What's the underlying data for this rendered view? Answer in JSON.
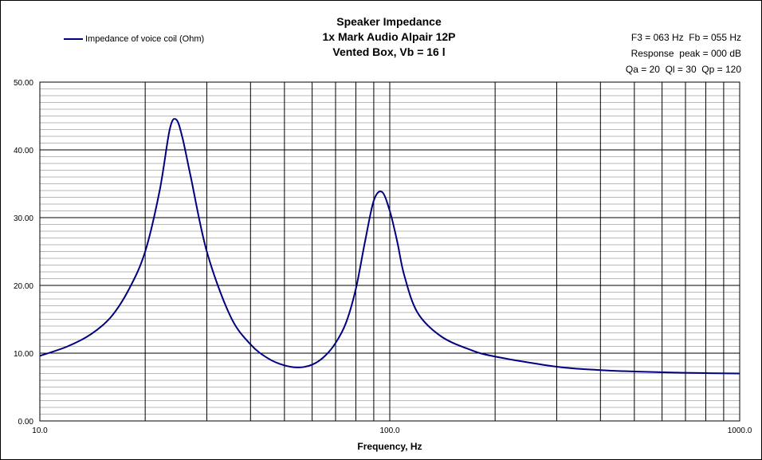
{
  "chart_data": {
    "type": "line",
    "title_lines": [
      "Speaker Impedance",
      "1x Mark Audio Alpair 12P",
      "Vented Box, Vb = 16 l"
    ],
    "info_lines": [
      "F3 = 063 Hz  Fb = 055 Hz",
      "Response  peak = 000 dB",
      "Qa = 20  Ql = 30  Qp = 120"
    ],
    "xlabel": "Frequency, Hz",
    "ylabel": "",
    "x_scale": "log",
    "xlim": [
      10,
      1000
    ],
    "ylim": [
      0,
      50
    ],
    "x_tick_labels": [
      "10.0",
      "100.0",
      "1000.0"
    ],
    "y_tick_labels": [
      "0.00",
      "10.00",
      "20.00",
      "30.00",
      "40.00",
      "50.00"
    ],
    "grid": true,
    "legend_position": "top-left",
    "series": [
      {
        "name": "Impedance of voice coil (Ohm)",
        "color": "#000080",
        "x": [
          10,
          12,
          14,
          16,
          18,
          20,
          22,
          23.5,
          24.5,
          25.5,
          27,
          30,
          35,
          40,
          45,
          50,
          55,
          60,
          65,
          70,
          75,
          80,
          85,
          90,
          95,
          100,
          105,
          110,
          120,
          140,
          170,
          200,
          300,
          400,
          500,
          700,
          1000
        ],
        "values": [
          9.6,
          11.0,
          12.8,
          15.4,
          19.5,
          25.0,
          34.0,
          43.0,
          44.5,
          42.0,
          36.0,
          25.0,
          15.5,
          11.3,
          9.2,
          8.2,
          7.9,
          8.3,
          9.5,
          11.5,
          14.5,
          19.5,
          26.5,
          32.5,
          33.8,
          31.0,
          26.5,
          21.5,
          16.0,
          12.5,
          10.5,
          9.5,
          8.0,
          7.5,
          7.3,
          7.1,
          7.0
        ]
      }
    ]
  }
}
